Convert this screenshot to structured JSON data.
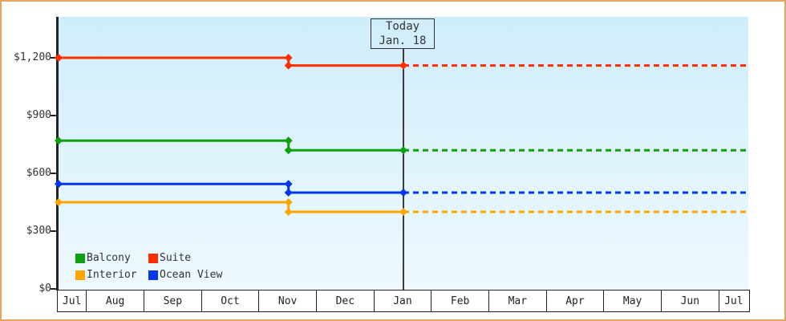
{
  "chart_data": {
    "type": "line",
    "subtype": "stepped-price-history-with-forecast",
    "title": "",
    "xlabel": "",
    "ylabel": "",
    "grid": false,
    "x_categories": [
      "Jul",
      "Aug",
      "Sep",
      "Oct",
      "Nov",
      "Dec",
      "Jan",
      "Feb",
      "Mar",
      "Apr",
      "May",
      "Jun",
      "Jul"
    ],
    "y_axis": {
      "tick_values": [
        0,
        300,
        600,
        900,
        1200
      ],
      "tick_labels": [
        "$0",
        "$300",
        "$600",
        "$900",
        "$1,200"
      ],
      "ylim": [
        0,
        1410
      ]
    },
    "today_marker": {
      "line1": "Today",
      "line2": "Jan. 18",
      "month": "Jan",
      "month_index": 6
    },
    "series": [
      {
        "name": "Suite",
        "color": "#ff2d00",
        "points": [
          {
            "month": "Jul",
            "month_index": 0,
            "price": 1200
          },
          {
            "month": "Nov",
            "month_index": 4,
            "price": 1200
          },
          {
            "month": "Nov",
            "month_index": 4,
            "price": 1160
          },
          {
            "month": "Jan",
            "month_index": 6,
            "price": 1160
          }
        ],
        "dashed_projection": {
          "from_month_index": 6,
          "to_month_index": 12,
          "price": 1160
        }
      },
      {
        "name": "Balcony",
        "color": "#0ea00e",
        "points": [
          {
            "month": "Jul",
            "month_index": 0,
            "price": 770
          },
          {
            "month": "Nov",
            "month_index": 4,
            "price": 770
          },
          {
            "month": "Nov",
            "month_index": 4,
            "price": 720
          },
          {
            "month": "Jan",
            "month_index": 6,
            "price": 720
          }
        ],
        "dashed_projection": {
          "from_month_index": 6,
          "to_month_index": 12,
          "price": 720
        }
      },
      {
        "name": "Ocean View",
        "color": "#0336f0",
        "points": [
          {
            "month": "Jul",
            "month_index": 0,
            "price": 545
          },
          {
            "month": "Nov",
            "month_index": 4,
            "price": 545
          },
          {
            "month": "Nov",
            "month_index": 4,
            "price": 500
          },
          {
            "month": "Jan",
            "month_index": 6,
            "price": 500
          }
        ],
        "dashed_projection": {
          "from_month_index": 6,
          "to_month_index": 12,
          "price": 500
        }
      },
      {
        "name": "Interior",
        "color": "#ffa500",
        "points": [
          {
            "month": "Jul",
            "month_index": 0,
            "price": 450
          },
          {
            "month": "Nov",
            "month_index": 4,
            "price": 450
          },
          {
            "month": "Nov",
            "month_index": 4,
            "price": 400
          },
          {
            "month": "Jan",
            "month_index": 6,
            "price": 400
          }
        ],
        "dashed_projection": {
          "from_month_index": 6,
          "to_month_index": 12,
          "price": 400
        }
      }
    ],
    "legend": {
      "position": "bottom-left-inside-plot",
      "rows": [
        [
          "Balcony",
          "Suite"
        ],
        [
          "Interior",
          "Ocean View"
        ]
      ]
    }
  },
  "colors": {
    "frame_border": "#e9a45b",
    "plot_background_top": "#cfedfa",
    "plot_background_bottom": "#eef9fe",
    "axis": "#222222",
    "text": "#333333",
    "today_line": "#3a3a3a"
  }
}
